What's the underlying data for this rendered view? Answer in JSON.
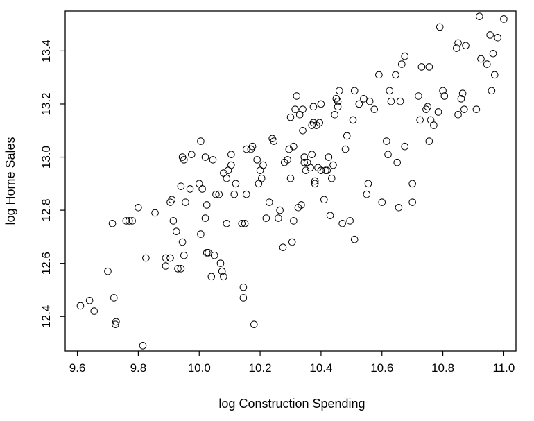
{
  "chart_data": {
    "type": "scatter",
    "title": "",
    "xlabel": "log Construction Spending",
    "ylabel": "log Home Sales",
    "xlim": [
      9.56,
      11.04
    ],
    "ylim": [
      12.27,
      13.55
    ],
    "xticks": [
      9.6,
      9.8,
      10.0,
      10.2,
      10.4,
      10.6,
      10.8,
      11.0
    ],
    "xtick_labels": [
      "9.6",
      "9.8",
      "10.0",
      "10.2",
      "10.4",
      "10.6",
      "10.8",
      "11.0"
    ],
    "yticks": [
      12.4,
      12.6,
      12.8,
      13.0,
      13.2,
      13.4
    ],
    "ytick_labels": [
      "12.4",
      "12.6",
      "12.8",
      "13.0",
      "13.2",
      "13.4"
    ],
    "grid": false,
    "marker": "open-circle",
    "points": [
      [
        9.61,
        12.44
      ],
      [
        9.64,
        12.46
      ],
      [
        9.655,
        12.42
      ],
      [
        9.7,
        12.57
      ],
      [
        9.715,
        12.75
      ],
      [
        9.72,
        12.47
      ],
      [
        9.725,
        12.37
      ],
      [
        9.727,
        12.38
      ],
      [
        9.76,
        12.76
      ],
      [
        9.77,
        12.76
      ],
      [
        9.78,
        12.76
      ],
      [
        9.8,
        12.81
      ],
      [
        9.815,
        12.29
      ],
      [
        9.825,
        12.62
      ],
      [
        9.855,
        12.79
      ],
      [
        9.89,
        12.62
      ],
      [
        9.89,
        12.59
      ],
      [
        9.905,
        12.62
      ],
      [
        9.905,
        12.83
      ],
      [
        9.91,
        12.84
      ],
      [
        9.915,
        12.76
      ],
      [
        9.925,
        12.72
      ],
      [
        9.93,
        12.58
      ],
      [
        9.94,
        12.58
      ],
      [
        9.94,
        12.89
      ],
      [
        9.945,
        12.68
      ],
      [
        9.945,
        13.0
      ],
      [
        9.95,
        12.99
      ],
      [
        9.95,
        12.63
      ],
      [
        9.955,
        12.83
      ],
      [
        9.97,
        12.88
      ],
      [
        9.975,
        13.01
      ],
      [
        10.0,
        12.9
      ],
      [
        10.005,
        13.06
      ],
      [
        10.005,
        12.71
      ],
      [
        10.01,
        12.88
      ],
      [
        10.02,
        12.77
      ],
      [
        10.02,
        13.0
      ],
      [
        10.025,
        12.82
      ],
      [
        10.025,
        12.64
      ],
      [
        10.03,
        12.64
      ],
      [
        10.04,
        12.55
      ],
      [
        10.045,
        12.99
      ],
      [
        10.05,
        12.63
      ],
      [
        10.055,
        12.86
      ],
      [
        10.065,
        12.86
      ],
      [
        10.07,
        12.6
      ],
      [
        10.075,
        12.57
      ],
      [
        10.08,
        12.55
      ],
      [
        10.08,
        12.94
      ],
      [
        10.09,
        12.92
      ],
      [
        10.09,
        12.75
      ],
      [
        10.095,
        12.95
      ],
      [
        10.105,
        12.97
      ],
      [
        10.105,
        13.01
      ],
      [
        10.115,
        12.86
      ],
      [
        10.12,
        12.9
      ],
      [
        10.14,
        12.75
      ],
      [
        10.145,
        12.51
      ],
      [
        10.145,
        12.47
      ],
      [
        10.15,
        12.75
      ],
      [
        10.155,
        12.86
      ],
      [
        10.155,
        13.03
      ],
      [
        10.17,
        13.03
      ],
      [
        10.175,
        13.04
      ],
      [
        10.18,
        12.37
      ],
      [
        10.19,
        12.99
      ],
      [
        10.195,
        12.9
      ],
      [
        10.2,
        12.95
      ],
      [
        10.205,
        12.92
      ],
      [
        10.21,
        12.97
      ],
      [
        10.22,
        12.77
      ],
      [
        10.23,
        12.83
      ],
      [
        10.24,
        13.07
      ],
      [
        10.245,
        13.06
      ],
      [
        10.26,
        12.77
      ],
      [
        10.265,
        12.8
      ],
      [
        10.275,
        12.66
      ],
      [
        10.28,
        12.98
      ],
      [
        10.29,
        12.99
      ],
      [
        10.295,
        13.03
      ],
      [
        10.3,
        12.92
      ],
      [
        10.3,
        13.15
      ],
      [
        10.305,
        12.68
      ],
      [
        10.31,
        12.76
      ],
      [
        10.31,
        13.04
      ],
      [
        10.315,
        13.18
      ],
      [
        10.32,
        13.23
      ],
      [
        10.325,
        12.81
      ],
      [
        10.33,
        13.16
      ],
      [
        10.335,
        12.82
      ],
      [
        10.34,
        13.18
      ],
      [
        10.34,
        13.1
      ],
      [
        10.345,
        12.98
      ],
      [
        10.345,
        13.0
      ],
      [
        10.35,
        12.95
      ],
      [
        10.355,
        12.98
      ],
      [
        10.365,
        12.96
      ],
      [
        10.37,
        13.01
      ],
      [
        10.37,
        13.12
      ],
      [
        10.375,
        13.13
      ],
      [
        10.375,
        13.19
      ],
      [
        10.38,
        12.91
      ],
      [
        10.38,
        12.9
      ],
      [
        10.385,
        13.12
      ],
      [
        10.39,
        12.96
      ],
      [
        10.395,
        13.13
      ],
      [
        10.4,
        12.95
      ],
      [
        10.4,
        13.2
      ],
      [
        10.41,
        12.84
      ],
      [
        10.415,
        12.95
      ],
      [
        10.42,
        12.95
      ],
      [
        10.425,
        13.0
      ],
      [
        10.43,
        12.78
      ],
      [
        10.435,
        12.92
      ],
      [
        10.44,
        12.97
      ],
      [
        10.445,
        13.16
      ],
      [
        10.45,
        13.22
      ],
      [
        10.455,
        13.19
      ],
      [
        10.455,
        13.21
      ],
      [
        10.46,
        13.25
      ],
      [
        10.47,
        12.75
      ],
      [
        10.48,
        13.03
      ],
      [
        10.485,
        13.08
      ],
      [
        10.495,
        12.76
      ],
      [
        10.505,
        13.14
      ],
      [
        10.51,
        12.69
      ],
      [
        10.51,
        13.25
      ],
      [
        10.525,
        13.2
      ],
      [
        10.54,
        13.22
      ],
      [
        10.55,
        12.86
      ],
      [
        10.555,
        12.9
      ],
      [
        10.56,
        13.21
      ],
      [
        10.575,
        13.18
      ],
      [
        10.59,
        13.31
      ],
      [
        10.6,
        12.83
      ],
      [
        10.615,
        13.06
      ],
      [
        10.62,
        13.01
      ],
      [
        10.625,
        13.25
      ],
      [
        10.63,
        13.21
      ],
      [
        10.645,
        13.31
      ],
      [
        10.65,
        12.98
      ],
      [
        10.655,
        12.81
      ],
      [
        10.66,
        13.21
      ],
      [
        10.665,
        13.35
      ],
      [
        10.675,
        13.38
      ],
      [
        10.675,
        13.04
      ],
      [
        10.7,
        12.83
      ],
      [
        10.7,
        12.9
      ],
      [
        10.72,
        13.23
      ],
      [
        10.725,
        13.14
      ],
      [
        10.73,
        13.34
      ],
      [
        10.745,
        13.18
      ],
      [
        10.75,
        13.19
      ],
      [
        10.755,
        13.06
      ],
      [
        10.755,
        13.34
      ],
      [
        10.76,
        13.14
      ],
      [
        10.77,
        13.12
      ],
      [
        10.785,
        13.17
      ],
      [
        10.79,
        13.49
      ],
      [
        10.8,
        13.25
      ],
      [
        10.805,
        13.23
      ],
      [
        10.845,
        13.41
      ],
      [
        10.85,
        13.16
      ],
      [
        10.85,
        13.43
      ],
      [
        10.86,
        13.22
      ],
      [
        10.865,
        13.24
      ],
      [
        10.87,
        13.18
      ],
      [
        10.875,
        13.42
      ],
      [
        10.91,
        13.18
      ],
      [
        10.92,
        13.53
      ],
      [
        10.925,
        13.37
      ],
      [
        10.945,
        13.35
      ],
      [
        10.955,
        13.46
      ],
      [
        10.96,
        13.25
      ],
      [
        10.965,
        13.39
      ],
      [
        10.97,
        13.31
      ],
      [
        10.98,
        13.45
      ],
      [
        11.0,
        13.52
      ]
    ]
  }
}
